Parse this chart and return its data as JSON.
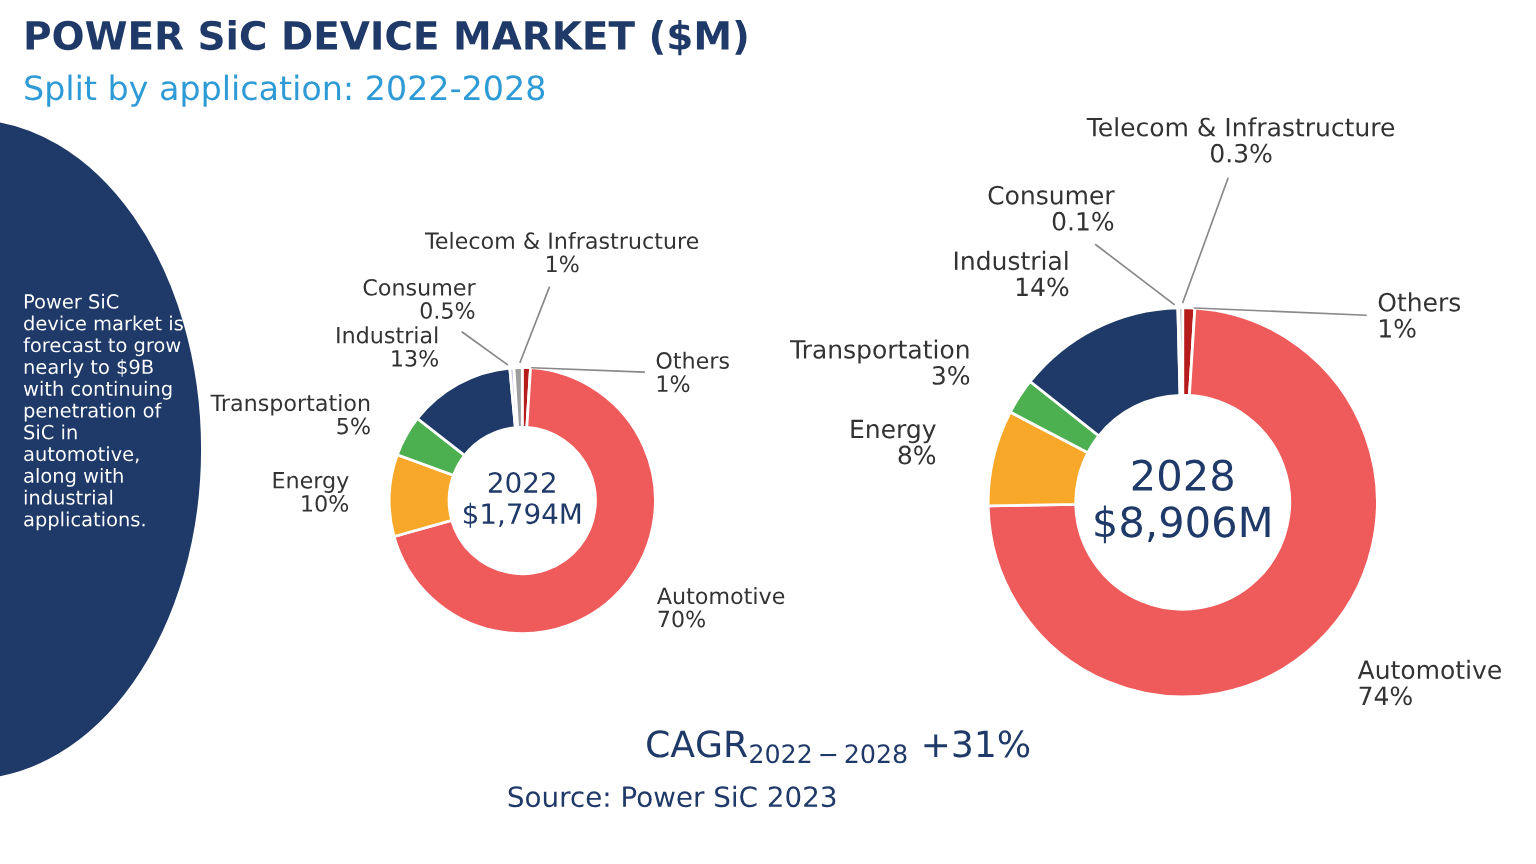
{
  "chart_data": [
    {
      "type": "donut",
      "title": "POWER SiC DEVICE MARKET ($M)",
      "subtitle": "Split by application: 2022-2028",
      "categories": [
        "Others",
        "Automotive",
        "Energy",
        "Transportation",
        "Industrial",
        "Consumer",
        "Telecom & Infrastructure"
      ],
      "values": [
        1,
        70,
        10,
        5,
        13,
        0.5,
        1
      ],
      "value_labels": [
        "1%",
        "70%",
        "10%",
        "5%",
        "13%",
        "0.5%",
        "1%"
      ],
      "colors": [
        "#b71c1c",
        "#ef5a5a",
        "#f7a828",
        "#4caf50",
        "#1f3a68",
        "#c9c3e6",
        "#9e9e9e"
      ],
      "annotations": [
        "2022\n$1,794M",
        "Power SiC\ndevice market is\nforecast to grow\nnearly to $9B\nwith continuing\npenetration of\nSiC in\nautomotive,\nalong with\nindustrial\napplications."
      ]
    },
    {
      "type": "donut",
      "categories": [
        "Others",
        "Automotive",
        "Energy",
        "Transportation",
        "Industrial",
        "Consumer",
        "Telecom & Infrastructure"
      ],
      "values": [
        1,
        74,
        8,
        3,
        14,
        0.1,
        0.3
      ],
      "value_labels": [
        "1%",
        "74%",
        "8%",
        "3%",
        "14%",
        "0.1%",
        "0.3%"
      ],
      "colors": [
        "#b71c1c",
        "#ef5a5a",
        "#f7a828",
        "#4caf50",
        "#1f3a68",
        "#c9c3e6",
        "#9e9e9e"
      ],
      "annotations": [
        "2028\n$8,906M",
        "CAGR$_{2022−2028}$ +31%",
        "Source: Power SiC 2023"
      ]
    }
  ]
}
